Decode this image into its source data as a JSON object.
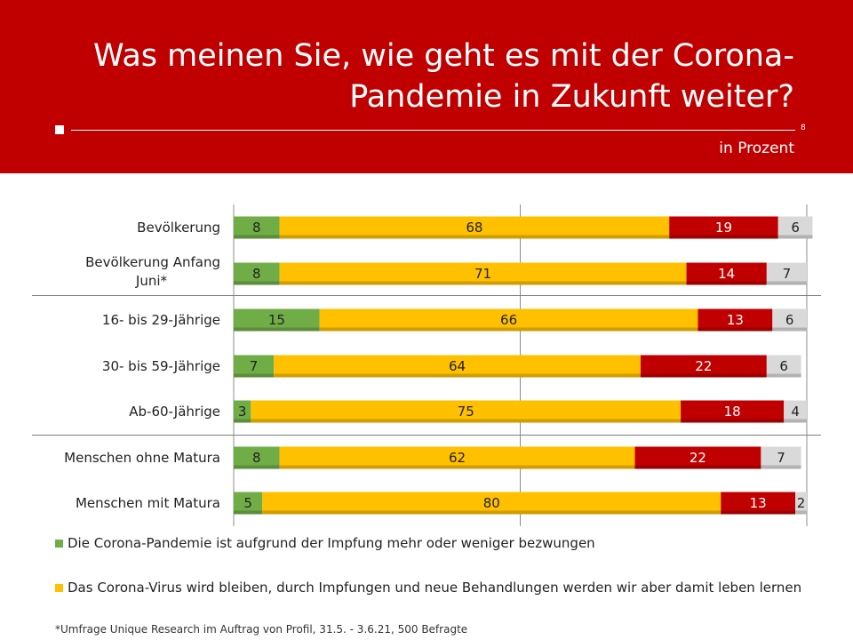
{
  "header": {
    "title": "Was meinen Sie, wie geht es mit der Corona-Pandemie in Zukunft weiter?",
    "page_number": "8",
    "unit": "in Prozent"
  },
  "colors": {
    "header_bg": "#c00000",
    "green": "#70ad47",
    "yellow": "#ffc000",
    "red": "#c00000",
    "grey": "#d9d9d9"
  },
  "chart_data": {
    "type": "bar",
    "orientation": "horizontal",
    "stacked": true,
    "categories": [
      "Bevölkerung",
      "Bevölkerung Anfang Juni*",
      "16- bis 29-Jährige",
      "30- bis 59-Jährige",
      "Ab-60-Jährige",
      "Menschen ohne Matura",
      "Menschen mit Matura"
    ],
    "series": [
      {
        "name": "Die Corona-Pandemie ist aufgrund der Impfung mehr oder weniger bezwungen",
        "color": "#70ad47",
        "values": [
          8,
          8,
          15,
          7,
          3,
          8,
          5
        ]
      },
      {
        "name": "Das Corona-Virus wird bleiben, durch Impfungen und neue Behandlungen werden wir aber damit leben lernen",
        "color": "#ffc000",
        "values": [
          68,
          71,
          66,
          64,
          75,
          62,
          80
        ]
      },
      {
        "color": "#c00000",
        "values": [
          19,
          14,
          13,
          22,
          18,
          22,
          13
        ]
      },
      {
        "color": "#d9d9d9",
        "values": [
          6,
          7,
          6,
          6,
          4,
          7,
          2
        ]
      }
    ],
    "xlim": [
      0,
      100
    ],
    "grid": true
  },
  "legend": [
    {
      "label": "Die Corona-Pandemie ist aufgrund der Impfung mehr oder weniger bezwungen",
      "color": "#70ad47"
    },
    {
      "label": "Das Corona-Virus wird bleiben, durch Impfungen und neue Behandlungen werden wir aber damit leben lernen",
      "color": "#ffc000"
    }
  ],
  "footnote": "*Umfrage Unique Research im Auftrag von Profil, 31.5. - 3.6.21, 500 Befragte"
}
